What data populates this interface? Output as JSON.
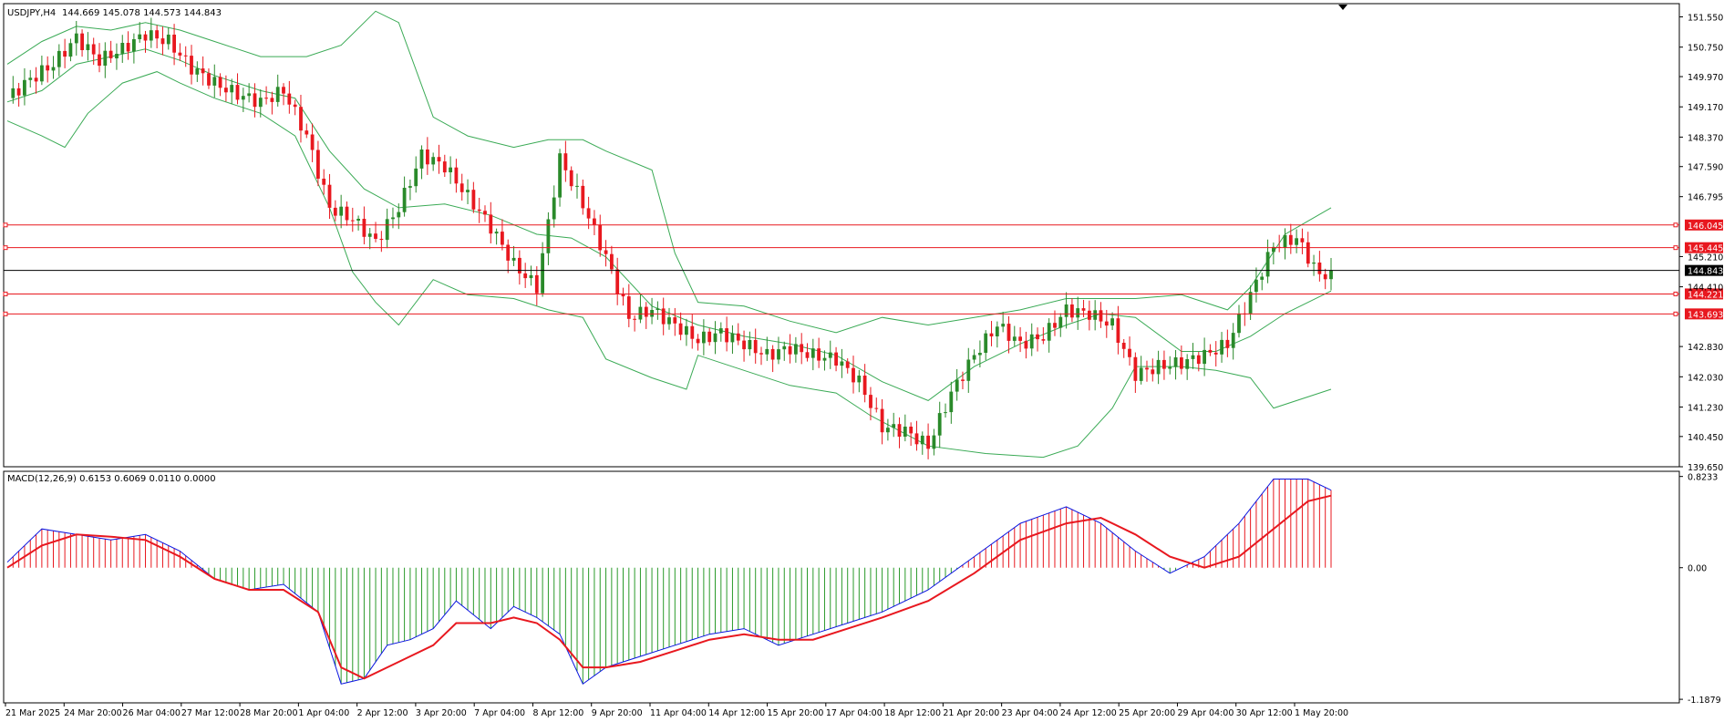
{
  "chart_data": [
    {
      "type": "candlestick",
      "title": "USDJPY,H4",
      "ohlc_label": "144.669 145.078 144.573 144.843",
      "price_axis": {
        "ylim": [
          139.65,
          151.9
        ],
        "ticks": [
          "151.550",
          "150.750",
          "149.970",
          "149.170",
          "148.370",
          "147.590",
          "146.795",
          "145.210",
          "144.410",
          "142.830",
          "142.030",
          "141.230",
          "140.450",
          "139.650"
        ]
      },
      "x_tick_labels": [
        "21 Mar 2025",
        "24 Mar 20:00",
        "26 Mar 04:00",
        "27 Mar 12:00",
        "28 Mar 20:00",
        "1 Apr 04:00",
        "2 Apr 12:00",
        "3 Apr 20:00",
        "7 Apr 04:00",
        "8 Apr 12:00",
        "9 Apr 20:00",
        "11 Apr 04:00",
        "14 Apr 12:00",
        "15 Apr 20:00",
        "17 Apr 04:00",
        "18 Apr 12:00",
        "21 Apr 20:00",
        "23 Apr 04:00",
        "24 Apr 12:00",
        "25 Apr 20:00",
        "29 Apr 04:00",
        "30 Apr 12:00",
        "1 May 20:00"
      ],
      "horizontal_levels": [
        {
          "price": 146.045,
          "label": "146.045",
          "color": "#e8181f"
        },
        {
          "price": 145.445,
          "label": "145.445",
          "color": "#e8181f"
        },
        {
          "price": 144.843,
          "label": "144.843",
          "color": "#000000",
          "current": true
        },
        {
          "price": 144.221,
          "label": "144.221",
          "color": "#e8181f"
        },
        {
          "price": 143.693,
          "label": "143.693",
          "color": "#e8181f"
        }
      ],
      "close_path": [
        [
          0,
          149.4
        ],
        [
          4,
          149.9
        ],
        [
          8,
          150.3
        ],
        [
          12,
          151.0
        ],
        [
          16,
          150.4
        ],
        [
          20,
          150.7
        ],
        [
          24,
          151.1
        ],
        [
          28,
          150.9
        ],
        [
          32,
          150.2
        ],
        [
          36,
          149.8
        ],
        [
          40,
          149.5
        ],
        [
          44,
          149.3
        ],
        [
          48,
          149.6
        ],
        [
          52,
          148.4
        ],
        [
          56,
          146.5
        ],
        [
          60,
          146.2
        ],
        [
          64,
          145.6
        ],
        [
          68,
          146.5
        ],
        [
          72,
          147.9
        ],
        [
          76,
          147.6
        ],
        [
          80,
          146.8
        ],
        [
          84,
          146.0
        ],
        [
          88,
          145.0
        ],
        [
          92,
          144.4
        ],
        [
          96,
          147.8
        ],
        [
          100,
          146.6
        ],
        [
          104,
          145.2
        ],
        [
          108,
          143.6
        ],
        [
          112,
          143.8
        ],
        [
          116,
          143.4
        ],
        [
          120,
          143.0
        ],
        [
          124,
          143.2
        ],
        [
          128,
          142.9
        ],
        [
          132,
          142.6
        ],
        [
          136,
          142.8
        ],
        [
          140,
          142.6
        ],
        [
          144,
          142.5
        ],
        [
          148,
          141.9
        ],
        [
          152,
          140.7
        ],
        [
          156,
          140.6
        ],
        [
          160,
          140.2
        ],
        [
          164,
          141.6
        ],
        [
          168,
          142.6
        ],
        [
          172,
          143.4
        ],
        [
          176,
          142.9
        ],
        [
          180,
          143.1
        ],
        [
          184,
          143.8
        ],
        [
          188,
          143.7
        ],
        [
          192,
          143.4
        ],
        [
          196,
          142.1
        ],
        [
          200,
          142.3
        ],
        [
          204,
          142.4
        ],
        [
          208,
          142.6
        ],
        [
          212,
          142.9
        ],
        [
          216,
          144.2
        ],
        [
          220,
          145.5
        ],
        [
          224,
          145.7
        ],
        [
          228,
          144.7
        ],
        [
          230,
          144.84
        ]
      ],
      "bollinger_bands": {
        "middle": [
          [
            0,
            149.3
          ],
          [
            6,
            149.6
          ],
          [
            12,
            150.3
          ],
          [
            18,
            150.5
          ],
          [
            24,
            150.7
          ],
          [
            30,
            150.4
          ],
          [
            36,
            150.0
          ],
          [
            44,
            149.6
          ],
          [
            50,
            149.4
          ],
          [
            56,
            148.0
          ],
          [
            62,
            147.0
          ],
          [
            68,
            146.5
          ],
          [
            76,
            146.6
          ],
          [
            84,
            146.3
          ],
          [
            92,
            145.8
          ],
          [
            98,
            145.7
          ],
          [
            104,
            145.2
          ],
          [
            112,
            143.9
          ],
          [
            120,
            143.4
          ],
          [
            128,
            143.1
          ],
          [
            136,
            142.9
          ],
          [
            144,
            142.6
          ],
          [
            152,
            141.9
          ],
          [
            160,
            141.4
          ],
          [
            168,
            142.3
          ],
          [
            176,
            142.9
          ],
          [
            184,
            143.4
          ],
          [
            190,
            143.7
          ],
          [
            196,
            143.6
          ],
          [
            204,
            142.7
          ],
          [
            210,
            142.7
          ],
          [
            216,
            143.1
          ],
          [
            222,
            143.7
          ],
          [
            230,
            144.3
          ]
        ],
        "upper": [
          [
            0,
            150.3
          ],
          [
            6,
            150.9
          ],
          [
            12,
            151.3
          ],
          [
            18,
            151.2
          ],
          [
            24,
            151.4
          ],
          [
            30,
            151.2
          ],
          [
            36,
            150.9
          ],
          [
            44,
            150.5
          ],
          [
            52,
            150.5
          ],
          [
            58,
            150.8
          ],
          [
            64,
            151.7
          ],
          [
            68,
            151.4
          ],
          [
            74,
            148.9
          ],
          [
            80,
            148.4
          ],
          [
            88,
            148.1
          ],
          [
            94,
            148.3
          ],
          [
            100,
            148.3
          ],
          [
            104,
            148.0
          ],
          [
            112,
            147.5
          ],
          [
            116,
            145.3
          ],
          [
            120,
            144.0
          ],
          [
            128,
            143.9
          ],
          [
            136,
            143.5
          ],
          [
            144,
            143.2
          ],
          [
            152,
            143.6
          ],
          [
            160,
            143.4
          ],
          [
            168,
            143.6
          ],
          [
            176,
            143.8
          ],
          [
            184,
            144.1
          ],
          [
            190,
            144.1
          ],
          [
            196,
            144.1
          ],
          [
            204,
            144.2
          ],
          [
            212,
            143.8
          ],
          [
            216,
            144.4
          ],
          [
            222,
            145.8
          ],
          [
            230,
            146.5
          ]
        ],
        "lower": [
          [
            0,
            148.8
          ],
          [
            6,
            148.4
          ],
          [
            10,
            148.1
          ],
          [
            14,
            149.0
          ],
          [
            20,
            149.8
          ],
          [
            26,
            150.1
          ],
          [
            30,
            149.8
          ],
          [
            36,
            149.4
          ],
          [
            44,
            149.0
          ],
          [
            50,
            148.4
          ],
          [
            56,
            146.5
          ],
          [
            60,
            144.8
          ],
          [
            64,
            144.0
          ],
          [
            68,
            143.4
          ],
          [
            74,
            144.6
          ],
          [
            80,
            144.2
          ],
          [
            88,
            144.1
          ],
          [
            94,
            143.8
          ],
          [
            100,
            143.6
          ],
          [
            104,
            142.5
          ],
          [
            112,
            142.0
          ],
          [
            118,
            141.7
          ],
          [
            120,
            142.6
          ],
          [
            128,
            142.2
          ],
          [
            136,
            141.8
          ],
          [
            144,
            141.6
          ],
          [
            150,
            141.0
          ],
          [
            160,
            140.2
          ],
          [
            170,
            140.0
          ],
          [
            180,
            139.9
          ],
          [
            186,
            140.2
          ],
          [
            192,
            141.2
          ],
          [
            196,
            142.3
          ],
          [
            204,
            142.3
          ],
          [
            210,
            142.2
          ],
          [
            216,
            142.0
          ],
          [
            220,
            141.2
          ],
          [
            230,
            141.7
          ]
        ]
      }
    },
    {
      "type": "line",
      "indicator": "MACD",
      "title": "MACD(12,26,9) 0.6153 0.6069 0.0110 0.0000",
      "ylim": [
        -1.22,
        0.87
      ],
      "ticks": [
        "0.8233",
        "0.00",
        "-1.1879"
      ],
      "series": [
        {
          "color": "#0a14e0",
          "values": [
            [
              0,
              0.05
            ],
            [
              6,
              0.35
            ],
            [
              12,
              0.3
            ],
            [
              18,
              0.25
            ],
            [
              24,
              0.3
            ],
            [
              30,
              0.15
            ],
            [
              36,
              -0.1
            ],
            [
              42,
              -0.2
            ],
            [
              48,
              -0.15
            ],
            [
              54,
              -0.4
            ],
            [
              58,
              -1.05
            ],
            [
              62,
              -1.0
            ],
            [
              66,
              -0.7
            ],
            [
              70,
              -0.65
            ],
            [
              74,
              -0.55
            ],
            [
              78,
              -0.3
            ],
            [
              84,
              -0.55
            ],
            [
              88,
              -0.35
            ],
            [
              92,
              -0.45
            ],
            [
              96,
              -0.6
            ],
            [
              100,
              -1.05
            ],
            [
              104,
              -0.9
            ],
            [
              110,
              -0.8
            ],
            [
              116,
              -0.7
            ],
            [
              122,
              -0.6
            ],
            [
              128,
              -0.55
            ],
            [
              134,
              -0.7
            ],
            [
              140,
              -0.6
            ],
            [
              146,
              -0.5
            ],
            [
              152,
              -0.4
            ],
            [
              160,
              -0.2
            ],
            [
              168,
              0.1
            ],
            [
              176,
              0.4
            ],
            [
              184,
              0.55
            ],
            [
              190,
              0.4
            ],
            [
              196,
              0.15
            ],
            [
              202,
              -0.05
            ],
            [
              208,
              0.1
            ],
            [
              214,
              0.4
            ],
            [
              220,
              0.8
            ],
            [
              226,
              0.8
            ],
            [
              230,
              0.7
            ]
          ]
        },
        {
          "color": "#e8181f",
          "values": [
            [
              0,
              0.0
            ],
            [
              6,
              0.2
            ],
            [
              12,
              0.3
            ],
            [
              18,
              0.28
            ],
            [
              24,
              0.25
            ],
            [
              30,
              0.1
            ],
            [
              36,
              -0.1
            ],
            [
              42,
              -0.2
            ],
            [
              48,
              -0.2
            ],
            [
              54,
              -0.4
            ],
            [
              58,
              -0.9
            ],
            [
              62,
              -1.0
            ],
            [
              66,
              -0.9
            ],
            [
              70,
              -0.8
            ],
            [
              74,
              -0.7
            ],
            [
              78,
              -0.5
            ],
            [
              84,
              -0.5
            ],
            [
              88,
              -0.45
            ],
            [
              92,
              -0.5
            ],
            [
              96,
              -0.65
            ],
            [
              100,
              -0.9
            ],
            [
              104,
              -0.9
            ],
            [
              110,
              -0.85
            ],
            [
              116,
              -0.75
            ],
            [
              122,
              -0.65
            ],
            [
              128,
              -0.6
            ],
            [
              134,
              -0.65
            ],
            [
              140,
              -0.65
            ],
            [
              146,
              -0.55
            ],
            [
              152,
              -0.45
            ],
            [
              160,
              -0.3
            ],
            [
              168,
              -0.05
            ],
            [
              176,
              0.25
            ],
            [
              184,
              0.4
            ],
            [
              190,
              0.45
            ],
            [
              196,
              0.3
            ],
            [
              202,
              0.1
            ],
            [
              208,
              0.0
            ],
            [
              214,
              0.1
            ],
            [
              220,
              0.35
            ],
            [
              226,
              0.6
            ],
            [
              230,
              0.65
            ]
          ]
        }
      ],
      "histogram_color_pos": "#e8181f",
      "histogram_color_neg": "#2a9a2a"
    }
  ],
  "colors": {
    "background": "#ffffff",
    "bull": "#2a8a2a",
    "bear": "#e8181f",
    "band": "#3aaa55",
    "axis": "#000000"
  }
}
